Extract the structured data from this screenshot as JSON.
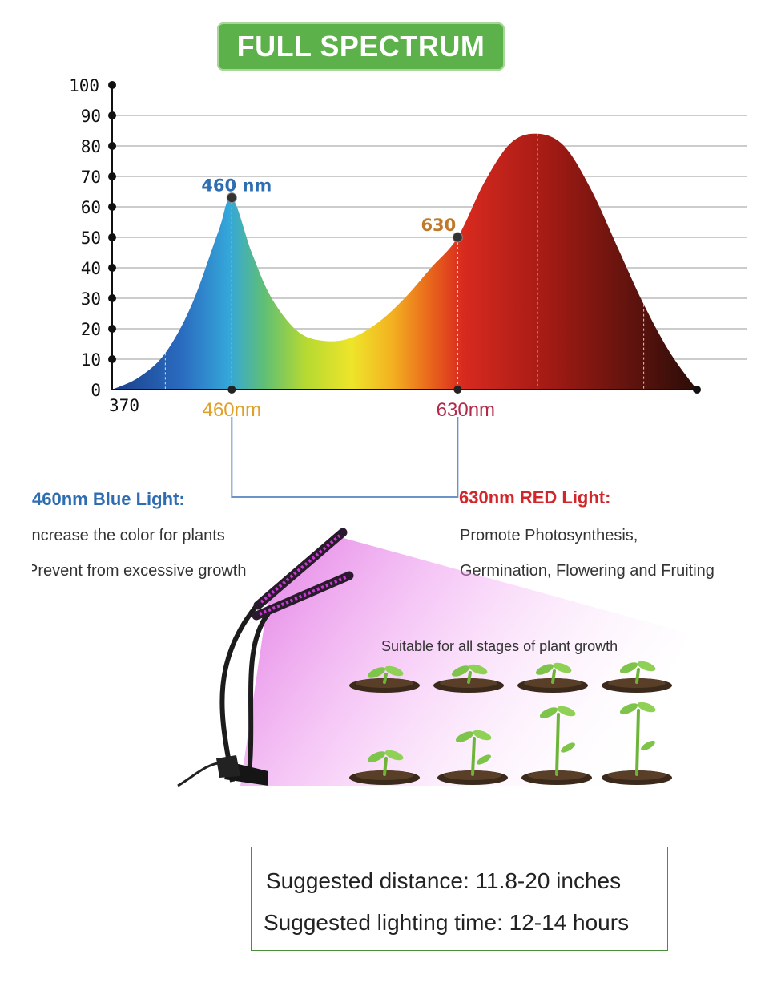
{
  "badge": {
    "text": "FULL SPECTRUM"
  },
  "chart_data": {
    "type": "area",
    "title": "FULL SPECTRUM",
    "xlabel": "",
    "ylabel": "",
    "ylim": [
      0,
      100
    ],
    "y_ticks": [
      0,
      10,
      20,
      30,
      40,
      50,
      60,
      70,
      80,
      90,
      100
    ],
    "x_tick_labels": [
      "370",
      "460nm",
      "630nm"
    ],
    "x": [
      370,
      390,
      410,
      430,
      450,
      460,
      475,
      490,
      510,
      530,
      550,
      570,
      590,
      610,
      630,
      650,
      670,
      690,
      710,
      730,
      750,
      770,
      790,
      810
    ],
    "values": [
      0,
      4,
      12,
      28,
      52,
      63,
      45,
      30,
      19,
      16,
      17,
      22,
      30,
      40,
      50,
      68,
      81,
      84,
      80,
      66,
      47,
      28,
      12,
      0
    ],
    "annotations": [
      {
        "label": "460 nm",
        "x": 460,
        "y": 63
      },
      {
        "label": "630",
        "x": 630,
        "y": 50
      }
    ],
    "grid": true,
    "colors": {
      "blue": "#2f6db2",
      "red": "#d3262a",
      "grid": "#bbbbbb"
    }
  },
  "left_text": {
    "title": "460nm Blue Light:",
    "line1": "Increase the color for plants",
    "line2": "Prevent from excessive growth"
  },
  "right_text": {
    "title": "630nm RED Light:",
    "line1": "Promote Photosynthesis,",
    "line2": "Germination, Flowering and Fruiting"
  },
  "stage_caption": "Suitable for all stages of plant growth",
  "info": {
    "distance": "Suggested distance: 11.8-20 inches",
    "time": "Suggested lighting time: 12-14 hours"
  }
}
